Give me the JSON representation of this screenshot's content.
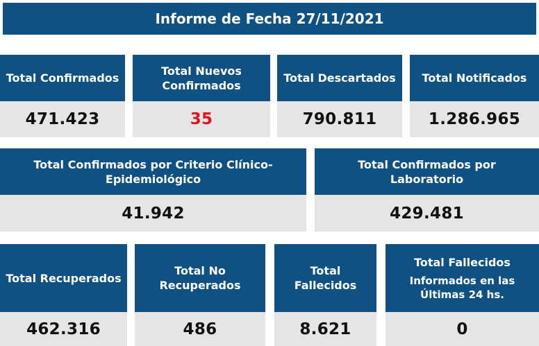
{
  "header": {
    "title": "Informe de Fecha 27/11/2021"
  },
  "row1": [
    {
      "label": "Total Confirmados",
      "value": "471.423"
    },
    {
      "label": "Total Nuevos Confirmados",
      "value": "35"
    },
    {
      "label": "Total Descartados",
      "value": "790.811"
    },
    {
      "label": "Total Notificados",
      "value": "1.286.965"
    }
  ],
  "row2": [
    {
      "label": "Total Confirmados por Criterio Clínico-Epidemiológico",
      "value": "41.942"
    },
    {
      "label": "Total Confirmados por Laboratorio",
      "value": "429.481"
    }
  ],
  "row3": [
    {
      "label": "Total Recuperados",
      "value": "462.316"
    },
    {
      "label": "Total No Recuperados",
      "value": "486"
    },
    {
      "label": "Total Fallecidos",
      "value": "8.621"
    },
    {
      "label": "Total Fallecidos",
      "sublabel": "Informados en las Últimas 24 hs.",
      "value": "0"
    }
  ],
  "colors": {
    "header_bg": "#0f5182",
    "value_bg": "#e5e5e5",
    "highlight": "#e0141e"
  }
}
